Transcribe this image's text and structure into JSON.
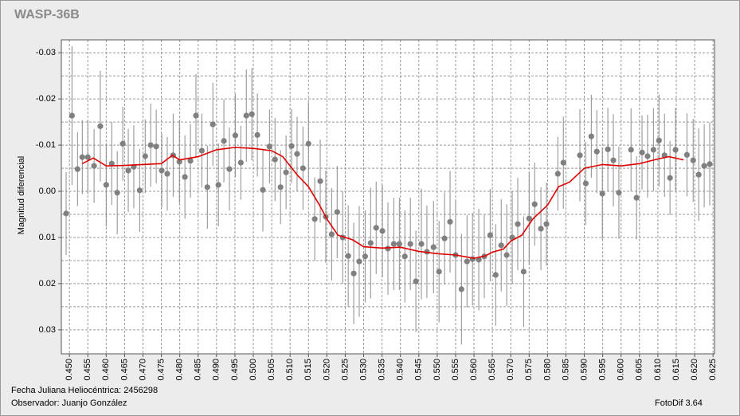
{
  "chart_data": {
    "type": "scatter",
    "title": "WASP-36B",
    "ylabel": "Magnitud diferencial",
    "annotations": [
      "Fecha Juliana Heliocéntrica: 2456298",
      "Observador: Juanjo González",
      "FotoDif 3.64"
    ],
    "y_inverted": true,
    "grid": true,
    "color": "#808080",
    "errorbar_color": "#8c8c8c",
    "xlim": [
      0.4478,
      0.6254
    ],
    "ylim": [
      -0.0328,
      0.0352
    ],
    "yticks": [
      -0.03,
      -0.02,
      -0.01,
      {
        "value": 0,
        "label": "0.00"
      },
      0.01,
      0.02,
      0.03
    ],
    "xticks": [
      {
        "value": 0.45,
        "label": "0.450"
      },
      0.455,
      {
        "value": 0.46,
        "label": "0.460"
      },
      0.465,
      {
        "value": 0.47,
        "label": "0.470"
      },
      0.475,
      {
        "value": 0.48,
        "label": "0.480"
      },
      0.485,
      {
        "value": 0.49,
        "label": "0.490"
      },
      0.495,
      {
        "value": 0.5,
        "label": "0.500"
      },
      0.505,
      {
        "value": 0.51,
        "label": "0.510"
      },
      0.515,
      {
        "value": 0.52,
        "label": "0.520"
      },
      0.525,
      {
        "value": 0.53,
        "label": "0.530"
      },
      0.535,
      {
        "value": 0.54,
        "label": "0.540"
      },
      0.545,
      {
        "value": 0.55,
        "label": "0.550"
      },
      0.555,
      {
        "value": 0.56,
        "label": "0.560"
      },
      0.565,
      {
        "value": 0.57,
        "label": "0.570"
      },
      0.575,
      {
        "value": 0.58,
        "label": "0.580"
      },
      0.585,
      {
        "value": 0.59,
        "label": "0.590"
      },
      0.595,
      {
        "value": 0.6,
        "label": "0.600"
      },
      0.605,
      {
        "value": 0.61,
        "label": "0.610"
      },
      0.615,
      {
        "value": 0.62,
        "label": "0.620"
      },
      0.625
    ],
    "x": [
      0.4491,
      0.4507,
      0.4522,
      0.4535,
      0.455,
      0.4567,
      0.4584,
      0.46,
      0.4615,
      0.463,
      0.4645,
      0.466,
      0.4675,
      0.4691,
      0.4706,
      0.4721,
      0.4736,
      0.4751,
      0.4766,
      0.4782,
      0.4799,
      0.4814,
      0.4829,
      0.4844,
      0.486,
      0.4875,
      0.489,
      0.4905,
      0.492,
      0.4935,
      0.4951,
      0.4966,
      0.4981,
      0.4996,
      0.5011,
      0.5026,
      0.5044,
      0.5059,
      0.5074,
      0.5089,
      0.5104,
      0.5119,
      0.5135,
      0.515,
      0.5167,
      0.5182,
      0.5197,
      0.5213,
      0.5228,
      0.5243,
      0.5258,
      0.5273,
      0.5288,
      0.5304,
      0.5319,
      0.5334,
      0.5351,
      0.5366,
      0.5382,
      0.5397,
      0.5412,
      0.5427,
      0.5442,
      0.5457,
      0.5472,
      0.549,
      0.5505,
      0.552,
      0.5535,
      0.555,
      0.5566,
      0.5581,
      0.5596,
      0.5613,
      0.5628,
      0.5644,
      0.5659,
      0.5674,
      0.5689,
      0.5704,
      0.5719,
      0.5735,
      0.575,
      0.5765,
      0.5782,
      0.5797,
      0.5828,
      0.5843,
      0.5888,
      0.5904,
      0.5919,
      0.5934,
      0.5949,
      0.5964,
      0.5979,
      0.5994,
      0.6027,
      0.6042,
      0.6057,
      0.6072,
      0.6088,
      0.6103,
      0.6118,
      0.6133,
      0.6148,
      0.6179,
      0.6196,
      0.6211,
      0.6226,
      0.6241
    ],
    "values": [
      0.0048,
      -0.0164,
      -0.0048,
      -0.0074,
      -0.0074,
      -0.0055,
      -0.0141,
      -0.0014,
      -0.006,
      0.0003,
      -0.0103,
      -0.0045,
      -0.0053,
      -0.0002,
      -0.0076,
      -0.01,
      -0.0097,
      -0.0045,
      -0.0038,
      -0.0078,
      -0.0064,
      -0.0031,
      -0.0066,
      -0.0164,
      -0.0088,
      -0.0009,
      -0.0145,
      -0.0014,
      -0.0109,
      -0.0048,
      -0.0121,
      -0.0062,
      -0.0164,
      -0.0167,
      -0.0122,
      -0.0003,
      -0.0097,
      -0.0069,
      -0.0009,
      -0.0041,
      -0.0098,
      -0.0081,
      -0.005,
      -0.0103,
      0.006,
      -0.0022,
      0.0055,
      0.0093,
      0.0045,
      0.01,
      0.014,
      0.0178,
      0.0152,
      0.0141,
      0.0112,
      0.0079,
      0.0086,
      0.0124,
      0.0114,
      0.0114,
      0.0141,
      0.0114,
      0.0195,
      0.0114,
      0.0131,
      0.0121,
      0.0174,
      0.0102,
      0.0066,
      0.0138,
      0.0212,
      0.0152,
      0.0147,
      0.0148,
      0.0141,
      0.0095,
      0.0181,
      0.0117,
      0.0138,
      0.01,
      0.0071,
      0.0174,
      0.0059,
      0.0028,
      0.0081,
      0.0071,
      -0.0038,
      -0.0062,
      -0.0078,
      -0.0017,
      -0.0119,
      -0.0086,
      0.0005,
      -0.0091,
      -0.0067,
      0.0003,
      -0.009,
      0.0014,
      -0.0084,
      -0.0076,
      -0.009,
      -0.011,
      -0.0078,
      -0.0029,
      -0.009,
      -0.0079,
      -0.0067,
      -0.0036,
      -0.0055,
      -0.0059
    ],
    "errors": [
      0.009,
      0.015,
      0.008,
      0.008,
      0.008,
      0.008,
      0.012,
      0.009,
      0.009,
      0.009,
      0.008,
      0.009,
      0.009,
      0.009,
      0.008,
      0.009,
      0.008,
      0.008,
      0.008,
      0.009,
      0.009,
      0.009,
      0.008,
      0.009,
      0.008,
      0.009,
      0.009,
      0.009,
      0.009,
      0.009,
      0.009,
      0.008,
      0.01,
      0.01,
      0.009,
      0.009,
      0.008,
      0.009,
      0.008,
      0.008,
      0.008,
      0.008,
      0.009,
      0.009,
      0.009,
      0.009,
      0.01,
      0.01,
      0.01,
      0.01,
      0.011,
      0.011,
      0.012,
      0.01,
      0.012,
      0.01,
      0.01,
      0.01,
      0.01,
      0.01,
      0.01,
      0.01,
      0.011,
      0.012,
      0.01,
      0.01,
      0.011,
      0.01,
      0.011,
      0.012,
      0.012,
      0.01,
      0.01,
      0.011,
      0.009,
      0.01,
      0.011,
      0.01,
      0.011,
      0.01,
      0.01,
      0.012,
      0.01,
      0.009,
      0.009,
      0.009,
      0.008,
      0.01,
      0.01,
      0.009,
      0.009,
      0.009,
      0.01,
      0.009,
      0.01,
      0.01,
      0.009,
      0.009,
      0.008,
      0.009,
      0.009,
      0.01,
      0.009,
      0.008,
      0.009,
      0.009,
      0.009,
      0.01,
      0.009,
      0.009
    ],
    "line": {
      "color": "#e00000",
      "x": [
        0.4535,
        0.4565,
        0.46,
        0.465,
        0.47,
        0.475,
        0.478,
        0.48,
        0.485,
        0.49,
        0.495,
        0.5,
        0.505,
        0.508,
        0.512,
        0.515,
        0.518,
        0.52,
        0.523,
        0.527,
        0.53,
        0.535,
        0.54,
        0.545,
        0.55,
        0.555,
        0.56,
        0.563,
        0.565,
        0.568,
        0.57,
        0.573,
        0.576,
        0.58,
        0.583,
        0.586,
        0.59,
        0.595,
        0.6,
        0.605,
        0.61,
        0.613,
        0.617
      ],
      "values": [
        -0.006,
        -0.0072,
        -0.0055,
        -0.0056,
        -0.0058,
        -0.006,
        -0.0078,
        -0.0068,
        -0.0075,
        -0.009,
        -0.0095,
        -0.0093,
        -0.0088,
        -0.0075,
        -0.0035,
        -0.001,
        0.003,
        0.006,
        0.0095,
        0.0105,
        0.012,
        0.0123,
        0.0121,
        0.013,
        0.0135,
        0.0138,
        0.0145,
        0.014,
        0.0132,
        0.0125,
        0.0108,
        0.0095,
        0.006,
        0.003,
        -0.001,
        -0.002,
        -0.005,
        -0.0058,
        -0.0055,
        -0.006,
        -0.007,
        -0.0075,
        -0.0068
      ]
    }
  }
}
